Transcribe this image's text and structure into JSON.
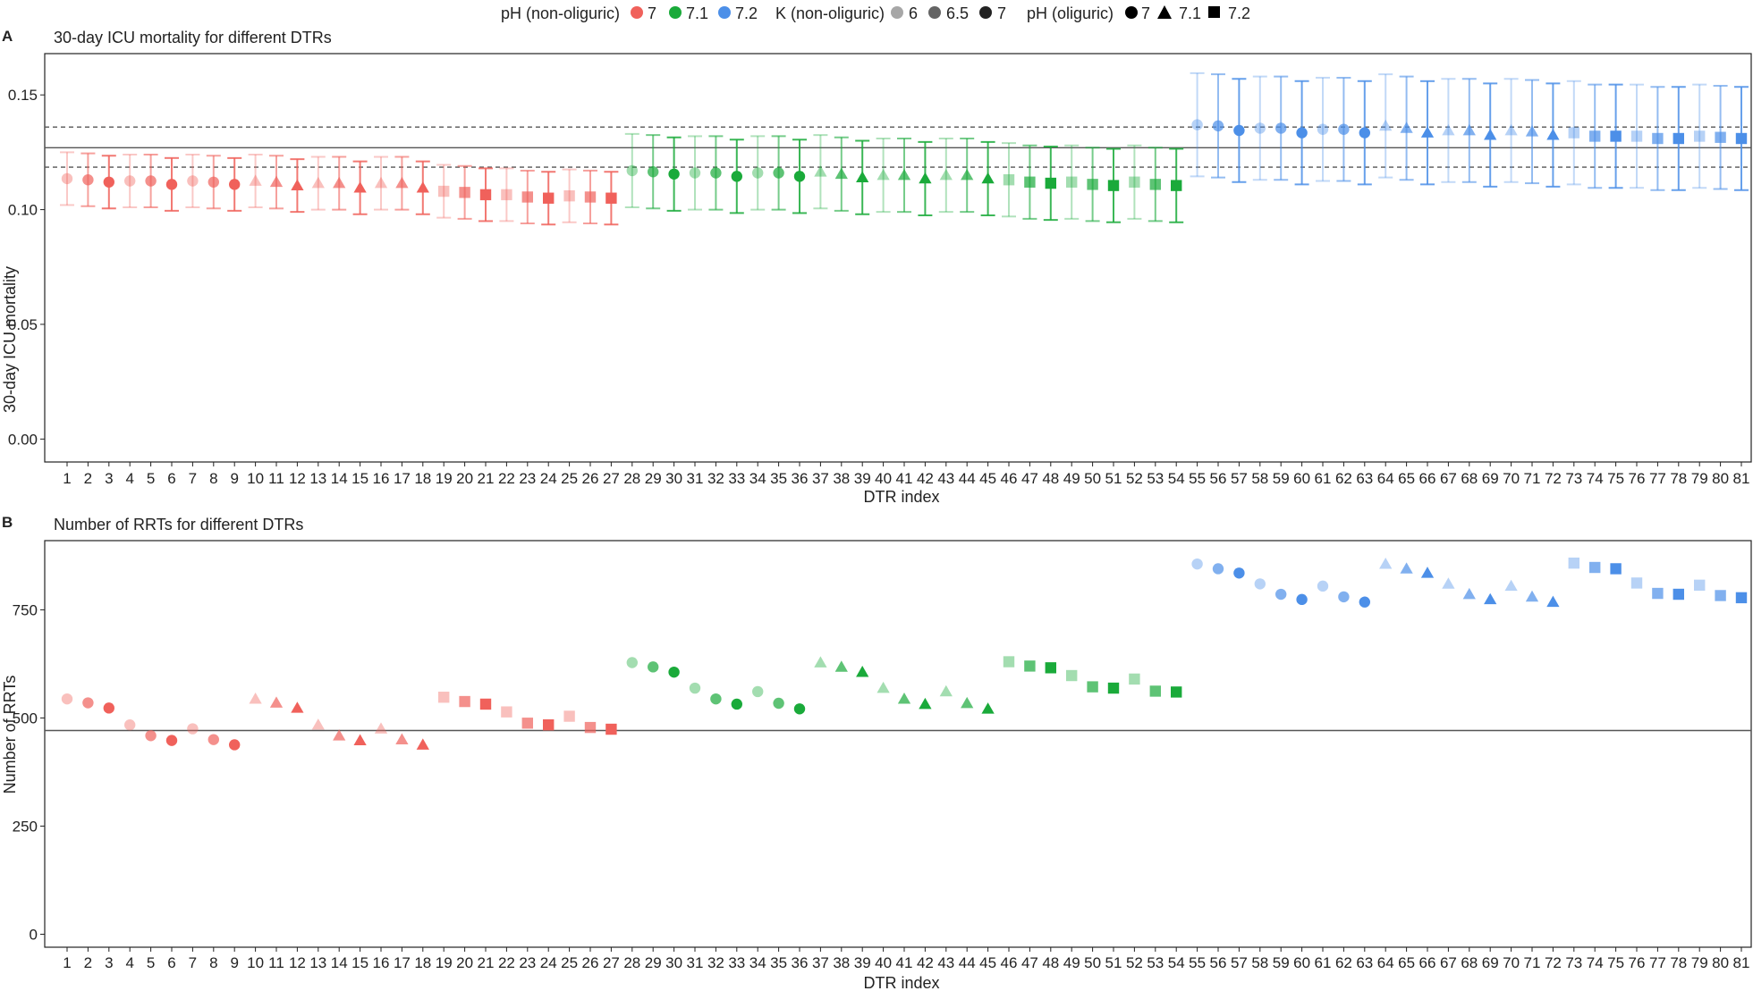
{
  "legend": {
    "ph_nonoliguric_title": "pH (non-oliguric)",
    "ph_nonoliguric_items": [
      {
        "label": "7",
        "color": "#f0615b"
      },
      {
        "label": "7.1",
        "color": "#1aaa3a"
      },
      {
        "label": "7.2",
        "color": "#4c8fe8"
      }
    ],
    "k_title": "K (non-oliguric)",
    "k_items": [
      {
        "label": "6",
        "opacity": 0.4
      },
      {
        "label": "6.5",
        "opacity": 0.7
      },
      {
        "label": "7",
        "opacity": 1.0
      }
    ],
    "ph_oliguric_title": "pH (oliguric)",
    "ph_oliguric_items": [
      {
        "label": "7",
        "shape": "circle"
      },
      {
        "label": "7.1",
        "shape": "triangle"
      },
      {
        "label": "7.2",
        "shape": "square"
      }
    ]
  },
  "chart_data": [
    {
      "panel": "A",
      "type": "scatter",
      "title": "30-day ICU mortality for different DTRs",
      "xlabel": "DTR index",
      "ylabel": "30-day ICU mortality",
      "ylim": [
        -0.01,
        0.168
      ],
      "yticks": [
        "0.00",
        "0.05",
        "0.10",
        "0.15"
      ],
      "ytick_values": [
        0.0,
        0.05,
        0.1,
        0.15
      ],
      "hlines": [
        {
          "y": 0.127,
          "style": "solid"
        },
        {
          "y": 0.136,
          "style": "dashed"
        },
        {
          "y": 0.1185,
          "style": "dashed"
        }
      ],
      "ci_half_width": [
        0.0115,
        0.0115,
        0.0115,
        0.0115,
        0.0115,
        0.0115,
        0.0115,
        0.0115,
        0.0115,
        0.0115,
        0.0115,
        0.0115,
        0.0115,
        0.0115,
        0.0115,
        0.0115,
        0.0115,
        0.0115,
        0.0115,
        0.0115,
        0.0115,
        0.0115,
        0.0115,
        0.0115,
        0.0115,
        0.0115,
        0.0115,
        0.016,
        0.016,
        0.016,
        0.016,
        0.016,
        0.016,
        0.016,
        0.016,
        0.016,
        0.016,
        0.016,
        0.016,
        0.016,
        0.016,
        0.016,
        0.016,
        0.016,
        0.016,
        0.016,
        0.016,
        0.016,
        0.016,
        0.016,
        0.016,
        0.016,
        0.016,
        0.016,
        0.0225,
        0.0225,
        0.0225,
        0.0225,
        0.0225,
        0.0225,
        0.0225,
        0.0225,
        0.0225,
        0.0225,
        0.0225,
        0.0225,
        0.0225,
        0.0225,
        0.0225,
        0.0225,
        0.0225,
        0.0225,
        0.0225,
        0.0225,
        0.0225,
        0.0225,
        0.0225,
        0.0225,
        0.0225,
        0.0225,
        0.0225
      ],
      "values": [
        0.1135,
        0.113,
        0.112,
        0.1125,
        0.1125,
        0.111,
        0.1125,
        0.112,
        0.111,
        0.1125,
        0.112,
        0.1105,
        0.1115,
        0.1115,
        0.1095,
        0.1115,
        0.1115,
        0.1095,
        0.108,
        0.1075,
        0.1065,
        0.1065,
        0.1055,
        0.105,
        0.106,
        0.1055,
        0.105,
        0.117,
        0.1165,
        0.1155,
        0.116,
        0.116,
        0.1145,
        0.116,
        0.116,
        0.1145,
        0.1165,
        0.1155,
        0.114,
        0.115,
        0.115,
        0.1135,
        0.115,
        0.115,
        0.1135,
        0.113,
        0.112,
        0.1115,
        0.112,
        0.111,
        0.1105,
        0.112,
        0.111,
        0.1105,
        0.137,
        0.1365,
        0.1345,
        0.1355,
        0.1355,
        0.1335,
        0.135,
        0.135,
        0.1335,
        0.1365,
        0.1355,
        0.1335,
        0.1345,
        0.1345,
        0.1325,
        0.1345,
        0.134,
        0.1325,
        0.1335,
        0.132,
        0.132,
        0.132,
        0.131,
        0.131,
        0.132,
        0.1315,
        0.131
      ]
    },
    {
      "panel": "B",
      "type": "scatter",
      "title": "Number of RRTs for different DTRs",
      "xlabel": "DTR index",
      "ylabel": "Number of RRTs",
      "ylim": [
        -30,
        910
      ],
      "yticks": [
        "0",
        "250",
        "500",
        "750"
      ],
      "ytick_values": [
        0,
        250,
        500,
        750
      ],
      "hlines": [
        {
          "y": 471,
          "style": "solid"
        }
      ],
      "values": [
        544,
        535,
        523,
        484,
        459,
        448,
        475,
        450,
        438,
        544,
        535,
        523,
        484,
        459,
        448,
        475,
        450,
        438,
        548,
        538,
        532,
        514,
        488,
        484,
        504,
        478,
        474,
        628,
        618,
        606,
        569,
        544,
        532,
        561,
        534,
        521,
        628,
        618,
        606,
        569,
        544,
        532,
        561,
        534,
        521,
        630,
        620,
        616,
        598,
        572,
        569,
        590,
        562,
        560,
        856,
        845,
        835,
        810,
        786,
        774,
        805,
        780,
        768,
        856,
        845,
        835,
        810,
        786,
        774,
        805,
        780,
        768,
        858,
        848,
        845,
        812,
        788,
        786,
        807,
        783,
        778
      ]
    }
  ],
  "x_categories": [
    "1",
    "2",
    "3",
    "4",
    "5",
    "6",
    "7",
    "8",
    "9",
    "10",
    "11",
    "12",
    "13",
    "14",
    "15",
    "16",
    "17",
    "18",
    "19",
    "20",
    "21",
    "22",
    "23",
    "24",
    "25",
    "26",
    "27",
    "28",
    "29",
    "30",
    "31",
    "32",
    "33",
    "34",
    "35",
    "36",
    "37",
    "38",
    "39",
    "40",
    "41",
    "42",
    "43",
    "44",
    "45",
    "46",
    "47",
    "48",
    "49",
    "50",
    "51",
    "52",
    "53",
    "54",
    "55",
    "56",
    "57",
    "58",
    "59",
    "60",
    "61",
    "62",
    "63",
    "64",
    "65",
    "66",
    "67",
    "68",
    "69",
    "70",
    "71",
    "72",
    "73",
    "74",
    "75",
    "76",
    "77",
    "78",
    "79",
    "80",
    "81"
  ]
}
